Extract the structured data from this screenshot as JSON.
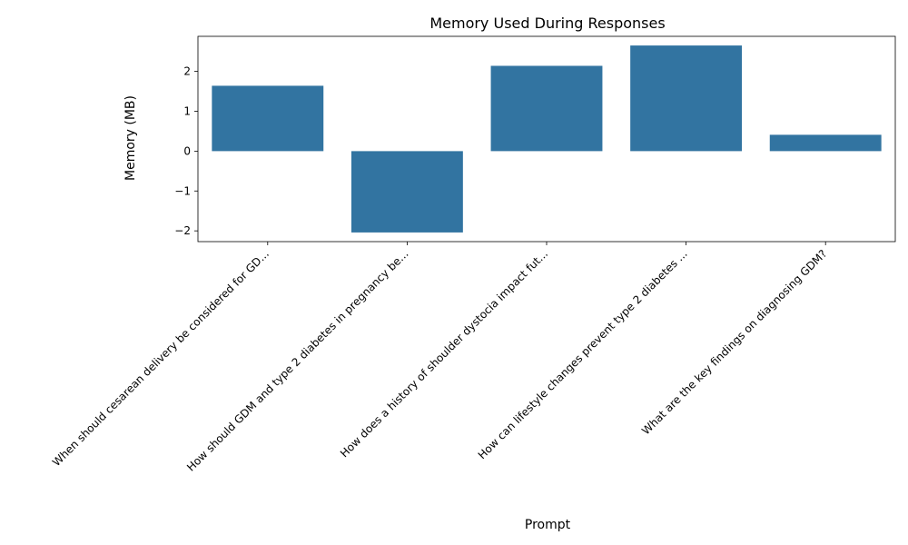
{
  "chart_data": {
    "type": "bar",
    "title": "Memory Used During Responses",
    "xlabel": "Prompt",
    "ylabel": "Memory (MB)",
    "categories": [
      "When should cesarean delivery be considered for GD...",
      "How should GDM and type 2 diabetes in pregnancy be...",
      "How does a history of shoulder dystocia impact fut...",
      "How can lifestyle changes prevent type 2 diabetes ...",
      "What are the key findings on diagnosing GDM?"
    ],
    "values": [
      1.64,
      -2.04,
      2.14,
      2.65,
      0.41
    ],
    "ylim": [
      -2.27,
      2.88
    ],
    "yticks": [
      -2,
      -1,
      0,
      1,
      2
    ],
    "bar_color": "#3274a1",
    "grid": false,
    "legend": "none"
  }
}
